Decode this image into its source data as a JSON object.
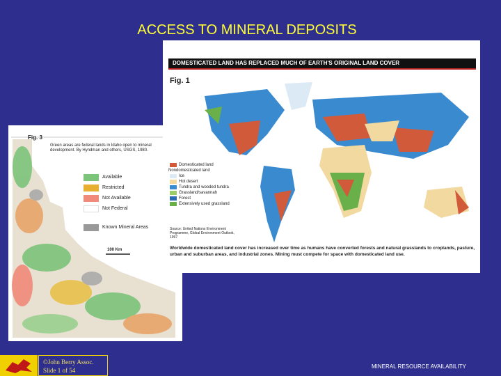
{
  "slide": {
    "title": "ACCESS TO MINERAL DEPOSITS",
    "figure1": {
      "header": "DOMESTICATED LAND HAS REPLACED MUCH OF EARTH'S ORIGINAL LAND COVER",
      "label": "Fig. 1",
      "legend": [
        "Domesticated land",
        "Nondomesticated land",
        "Ice",
        "Hot desert",
        "Tundra and wooded tundra",
        "Grassland/savannah",
        "Forest",
        "Extensively used grassland"
      ],
      "source": "Source: United Nations Environment Programme, Global Environment Outlook, 1997",
      "caption": "Worldwide domesticated land cover has increased over time as humans have converted forests and natural grasslands to croplands, pasture, urban and suburban areas, and industrial zones. Mining must compete for space with domesticated land use."
    },
    "figure3": {
      "label": "Fig. 3",
      "description": "Green areas are federal lands in Idaho open to mineral development. By Hyndman and others, USGS, 1980.",
      "legend": [
        "Available",
        "Restricted",
        "Not Available",
        "Not Federal",
        "Known Mineral Areas"
      ],
      "scale": "100 Km"
    },
    "footer": {
      "copyright": "©John Berry Assoc.",
      "slide_number": "Slide 1 of 54",
      "topic": "MINERAL RESOURCE AVAILABILITY"
    }
  }
}
